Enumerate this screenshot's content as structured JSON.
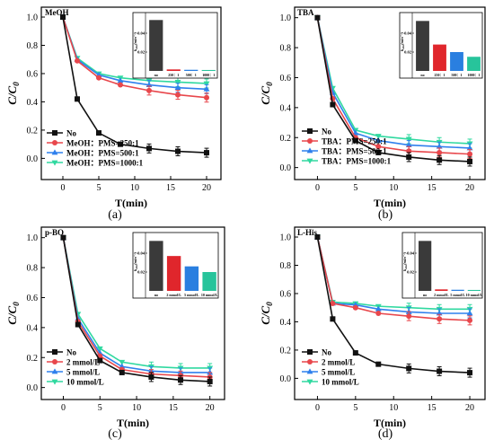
{
  "colors": {
    "series": [
      "#111111",
      "#e8474c",
      "#2f80ed",
      "#30d9a0"
    ],
    "bars": [
      "#3a3a3a",
      "#e0262c",
      "#2a7fe0",
      "#27c49b"
    ]
  },
  "chart_data": [
    {
      "type": "line",
      "caption": "(a)",
      "panel_label": "MeOH",
      "xlabel": "T(min)",
      "ylabel_main": "C/C",
      "ylabel_sub": "0",
      "xlim": [
        -3,
        22
      ],
      "ylim": [
        -0.15,
        1.07
      ],
      "xticks": [
        0,
        5,
        10,
        15,
        20
      ],
      "yticks": [
        0.0,
        0.2,
        0.4,
        0.6,
        0.8,
        1.0
      ],
      "ytick_labels": [
        "0.0",
        "0.2",
        "0.4",
        "0.6",
        "0.8",
        "1.0"
      ],
      "x": [
        0,
        2,
        5,
        8,
        12,
        16,
        20
      ],
      "series": [
        {
          "name": "No",
          "values": [
            1.0,
            0.42,
            0.18,
            0.1,
            0.07,
            0.05,
            0.04
          ]
        },
        {
          "name": "MeOH：PMS=250:1",
          "values": [
            1.0,
            0.69,
            0.57,
            0.52,
            0.48,
            0.45,
            0.43
          ]
        },
        {
          "name": "MeOH：PMS=500:1",
          "values": [
            1.0,
            0.7,
            0.59,
            0.55,
            0.52,
            0.5,
            0.49
          ]
        },
        {
          "name": "MeOH：PMS=1000:1",
          "values": [
            1.0,
            0.71,
            0.6,
            0.57,
            0.55,
            0.54,
            0.53
          ]
        }
      ],
      "legend_position": "bottom-left",
      "inset": {
        "type": "bar",
        "ylabel_main": "k",
        "ylabel_sub": "obs",
        "ylabel_unit": "(min⁻¹)",
        "ylim": [
          0,
          0.06
        ],
        "yticks": [
          0.02,
          0.04
        ],
        "ytick_labels": [
          "0.02",
          "0.04"
        ],
        "categories": [
          "no",
          "250：1",
          "500：1",
          "1000：1"
        ],
        "values": [
          0.054,
          0.0016,
          0.0012,
          0.001
        ]
      }
    },
    {
      "type": "line",
      "caption": "(b)",
      "panel_label": "TBA",
      "xlabel": "T(min)",
      "ylabel_main": "C/C",
      "ylabel_sub": "0",
      "xlim": [
        -3,
        22
      ],
      "ylim": [
        -0.08,
        1.07
      ],
      "xticks": [
        0,
        5,
        10,
        15,
        20
      ],
      "yticks": [
        0.0,
        0.2,
        0.4,
        0.6,
        0.8,
        1.0
      ],
      "ytick_labels": [
        "0.0",
        "0.2",
        "0.4",
        "0.6",
        "0.8",
        "1.0"
      ],
      "x": [
        0,
        2,
        5,
        8,
        12,
        16,
        20
      ],
      "series": [
        {
          "name": "No",
          "values": [
            1.0,
            0.42,
            0.18,
            0.1,
            0.07,
            0.05,
            0.04
          ]
        },
        {
          "name": "TBA：PMS=250:1",
          "values": [
            1.0,
            0.46,
            0.2,
            0.14,
            0.11,
            0.1,
            0.09
          ]
        },
        {
          "name": "TBA：PMS=500:1",
          "values": [
            1.0,
            0.5,
            0.23,
            0.18,
            0.15,
            0.14,
            0.13
          ]
        },
        {
          "name": "TBA：PMS=1000:1",
          "values": [
            1.0,
            0.53,
            0.25,
            0.21,
            0.19,
            0.17,
            0.16
          ]
        }
      ],
      "legend_position": "bottom-left",
      "inset": {
        "type": "bar",
        "ylabel_main": "k",
        "ylabel_sub": "obs",
        "ylabel_unit": "(min⁻¹)",
        "ylim": [
          0,
          0.06
        ],
        "yticks": [
          0.02,
          0.04
        ],
        "ytick_labels": [
          "0.02",
          "0.04"
        ],
        "categories": [
          "no",
          "250：1",
          "500：1",
          "1000：1"
        ],
        "values": [
          0.053,
          0.028,
          0.02,
          0.015
        ]
      }
    },
    {
      "type": "line",
      "caption": "(c)",
      "panel_label": "p-BQ",
      "xlabel": "T(min)",
      "ylabel_main": "C/C",
      "ylabel_sub": "0",
      "xlim": [
        -3,
        22
      ],
      "ylim": [
        -0.08,
        1.07
      ],
      "xticks": [
        0,
        5,
        10,
        15,
        20
      ],
      "yticks": [
        0.0,
        0.2,
        0.4,
        0.6,
        0.8,
        1.0
      ],
      "ytick_labels": [
        "0.0",
        "0.2",
        "0.4",
        "0.6",
        "0.8",
        "1.0"
      ],
      "x": [
        0,
        2,
        5,
        8,
        12,
        16,
        20
      ],
      "series": [
        {
          "name": "No",
          "values": [
            1.0,
            0.42,
            0.18,
            0.1,
            0.07,
            0.05,
            0.04
          ]
        },
        {
          "name": "2 mmol/L",
          "values": [
            1.0,
            0.44,
            0.21,
            0.12,
            0.09,
            0.08,
            0.07
          ]
        },
        {
          "name": "5 mmol/L",
          "values": [
            1.0,
            0.46,
            0.23,
            0.14,
            0.11,
            0.1,
            0.1
          ]
        },
        {
          "name": "10 mmol/L",
          "values": [
            1.0,
            0.49,
            0.26,
            0.17,
            0.14,
            0.13,
            0.13
          ]
        }
      ],
      "legend_position": "bottom-left",
      "inset": {
        "type": "bar",
        "ylabel_main": "k",
        "ylabel_sub": "obs",
        "ylabel_unit": "(min⁻¹)",
        "ylim": [
          0,
          0.06
        ],
        "yticks": [
          0.02,
          0.04
        ],
        "ytick_labels": [
          "0.02",
          "0.04"
        ],
        "categories": [
          "no",
          "2 mmol/L",
          "5 mmol/L",
          "10 mmol/L"
        ],
        "values": [
          0.053,
          0.037,
          0.026,
          0.02
        ]
      }
    },
    {
      "type": "line",
      "caption": "(d)",
      "panel_label": "L-His",
      "xlabel": "T(min)",
      "ylabel_main": "C/C",
      "ylabel_sub": "0",
      "xlim": [
        -3,
        22
      ],
      "ylim": [
        -0.15,
        1.07
      ],
      "xticks": [
        0,
        5,
        10,
        15,
        20
      ],
      "yticks": [
        0.0,
        0.2,
        0.4,
        0.6,
        0.8,
        1.0
      ],
      "ytick_labels": [
        "0.0",
        "0.2",
        "0.4",
        "0.6",
        "0.8",
        "1.0"
      ],
      "x": [
        0,
        2,
        5,
        8,
        12,
        16,
        20
      ],
      "series": [
        {
          "name": "No",
          "values": [
            1.0,
            0.42,
            0.18,
            0.1,
            0.07,
            0.05,
            0.04
          ]
        },
        {
          "name": "2 mmol/L",
          "values": [
            1.0,
            0.53,
            0.5,
            0.46,
            0.44,
            0.42,
            0.41
          ]
        },
        {
          "name": "5 mmol/L",
          "values": [
            1.0,
            0.53,
            0.52,
            0.49,
            0.47,
            0.46,
            0.46
          ]
        },
        {
          "name": "10 mmol/L",
          "values": [
            1.0,
            0.54,
            0.53,
            0.51,
            0.5,
            0.49,
            0.49
          ]
        }
      ],
      "legend_position": "bottom-left",
      "inset": {
        "type": "bar",
        "ylabel_main": "k",
        "ylabel_sub": "obs",
        "ylabel_unit": "(min⁻¹)",
        "ylim": [
          0,
          0.06
        ],
        "yticks": [
          0.02,
          0.04
        ],
        "ytick_labels": [
          "0.02",
          "0.04"
        ],
        "categories": [
          "no",
          "2 mmol/L",
          "5 mmol/L",
          "10 mmol/L"
        ],
        "values": [
          0.053,
          0.0016,
          0.0012,
          0.001
        ]
      }
    }
  ]
}
